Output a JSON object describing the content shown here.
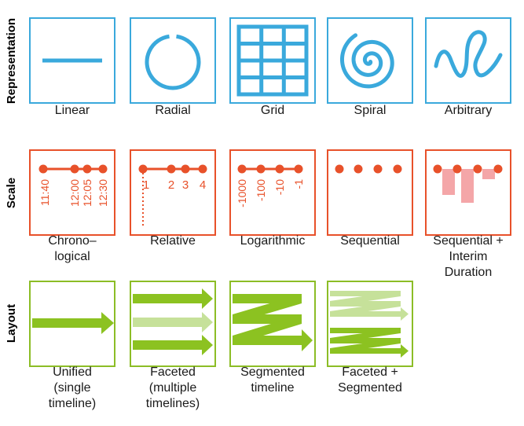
{
  "colors": {
    "representation": "#3aa9dc",
    "scale": "#e8512a",
    "scale_bar": "#f4a6a8",
    "layout_border": "#8cbd26",
    "layout_arrow": "#8cc221",
    "layout_arrow_light": "#c6e19a"
  },
  "rows": {
    "representation": {
      "label": "Representation",
      "items": [
        {
          "name": "linear",
          "caption": "Linear"
        },
        {
          "name": "radial",
          "caption": "Radial"
        },
        {
          "name": "grid",
          "caption": "Grid"
        },
        {
          "name": "spiral",
          "caption": "Spiral"
        },
        {
          "name": "arbitrary",
          "caption": "Arbitrary"
        }
      ]
    },
    "scale": {
      "label": "Scale",
      "items": [
        {
          "name": "chronological",
          "caption": "Chrono–\nlogical",
          "ticks": [
            "11:40",
            "12:00",
            "12:05",
            "12:30"
          ]
        },
        {
          "name": "relative",
          "caption": "Relative",
          "ticks": [
            "1",
            "2",
            "3",
            "4"
          ]
        },
        {
          "name": "logarithmic",
          "caption": "Logarithmic",
          "ticks": [
            "-1000",
            "-100",
            "-10",
            "-1"
          ]
        },
        {
          "name": "sequential",
          "caption": "Sequential"
        },
        {
          "name": "sequential-interim-duration",
          "caption": "Sequential +\nInterim\nDuration"
        }
      ]
    },
    "layout": {
      "label": "Layout",
      "items": [
        {
          "name": "unified",
          "caption": "Unified\n(single\ntimeline)"
        },
        {
          "name": "faceted",
          "caption": "Faceted\n(multiple\ntimelines)"
        },
        {
          "name": "segmented",
          "caption": "Segmented\ntimeline"
        },
        {
          "name": "faceted-segmented",
          "caption": "Faceted +\nSegmented"
        }
      ]
    }
  }
}
